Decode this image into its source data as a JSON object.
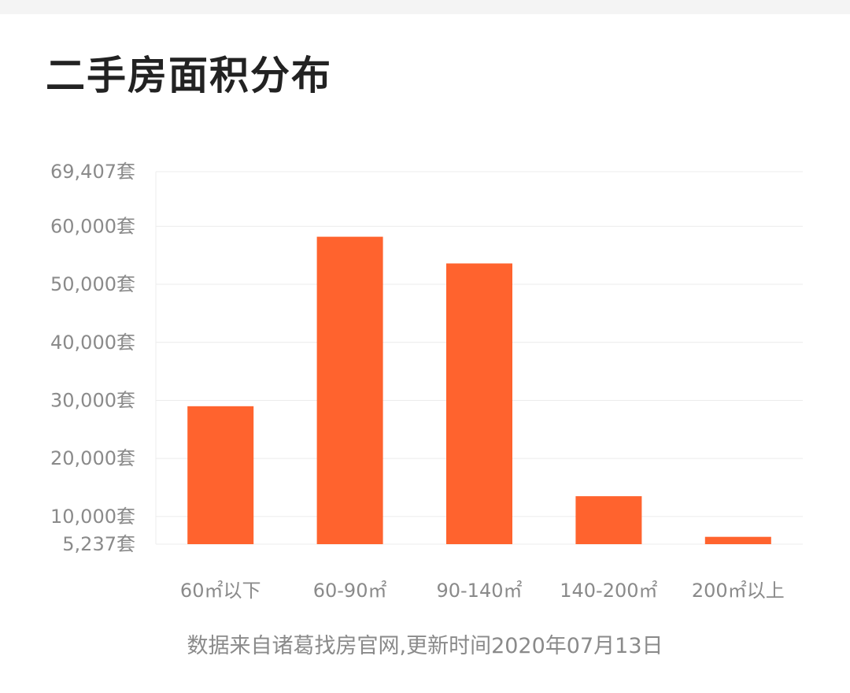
{
  "title": "二手房面积分布",
  "source_note": "数据来自诸葛找房官网,更新时间2020年07月13日",
  "colors": {
    "bar": "#ff632e",
    "grid": "#ececec",
    "tick_text": "#8a8a8a",
    "title_text": "#222222",
    "background": "#ffffff"
  },
  "chart_data": {
    "type": "bar",
    "title": "二手房面积分布",
    "categories": [
      "60㎡以下",
      "60-90㎡",
      "90-140㎡",
      "140-200㎡",
      "200㎡以上"
    ],
    "values": [
      29000,
      58200,
      53600,
      13500,
      6500
    ],
    "ylim": [
      5237,
      69407
    ],
    "y_ticks": [
      5237,
      10000,
      20000,
      30000,
      40000,
      50000,
      60000,
      69407
    ],
    "y_tick_labels": [
      "5,237套",
      "10,000套",
      "20,000套",
      "30,000套",
      "40,000套",
      "50,000套",
      "60,000套",
      "69,407套"
    ],
    "grid": true,
    "legend": "none"
  }
}
